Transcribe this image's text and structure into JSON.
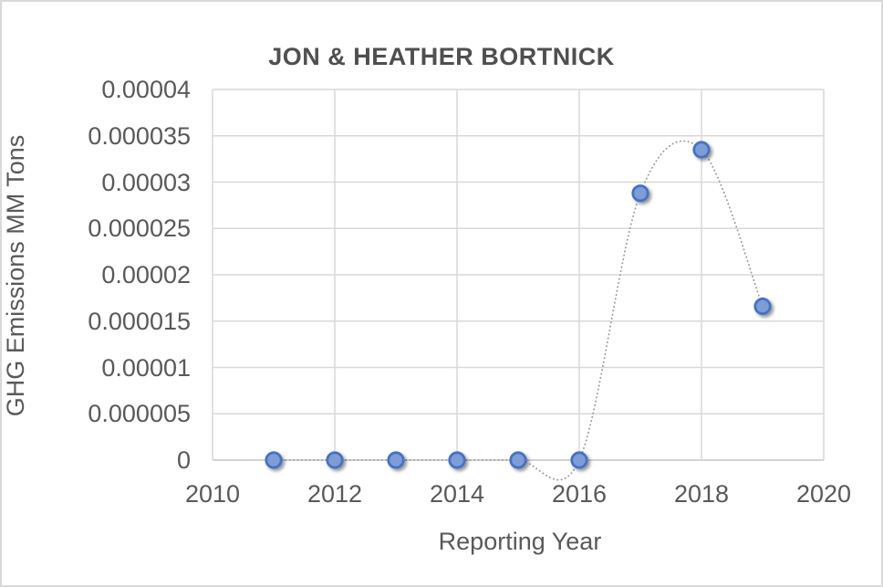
{
  "chart_data": {
    "type": "scatter",
    "title": "JON & HEATHER BORTNICK",
    "xlabel": "Reporting Year",
    "ylabel": "GHG Emissions MM Tons",
    "xlim": [
      2010,
      2020
    ],
    "ylim": [
      0,
      4e-05
    ],
    "grid": true,
    "legend": false,
    "x_ticks": {
      "labels": [
        "2010",
        "2012",
        "2014",
        "2016",
        "2018",
        "2020"
      ],
      "values": [
        2010,
        2012,
        2014,
        2016,
        2018,
        2020
      ]
    },
    "y_ticks": {
      "labels": [
        "0.00004",
        "0.000035",
        "0.00003",
        "0.000025",
        "0.00002",
        "0.000015",
        "0.00001",
        "0.000005",
        "0"
      ],
      "values": [
        4e-05,
        3.5e-05,
        3e-05,
        2.5e-05,
        2e-05,
        1.5e-05,
        1e-05,
        5e-06,
        0
      ]
    },
    "series": [
      {
        "name": "GHG Emissions MM Tons",
        "x": [
          2011,
          2012,
          2013,
          2014,
          2015,
          2016,
          2017,
          2018,
          2019
        ],
        "y": [
          0,
          0,
          0,
          0,
          0,
          0,
          2.88e-05,
          3.35e-05,
          1.66e-05
        ],
        "marker_fill": "#7e9dd7",
        "marker_stroke": "#4472c4",
        "line_style": "dotted",
        "line_color": "#969696",
        "smooth": true
      }
    ],
    "colors": {
      "gridline": "#d9d9d9",
      "axis_line": "#c6c6c6",
      "title_text": "#4f4f4f",
      "label_text": "#595959"
    }
  }
}
